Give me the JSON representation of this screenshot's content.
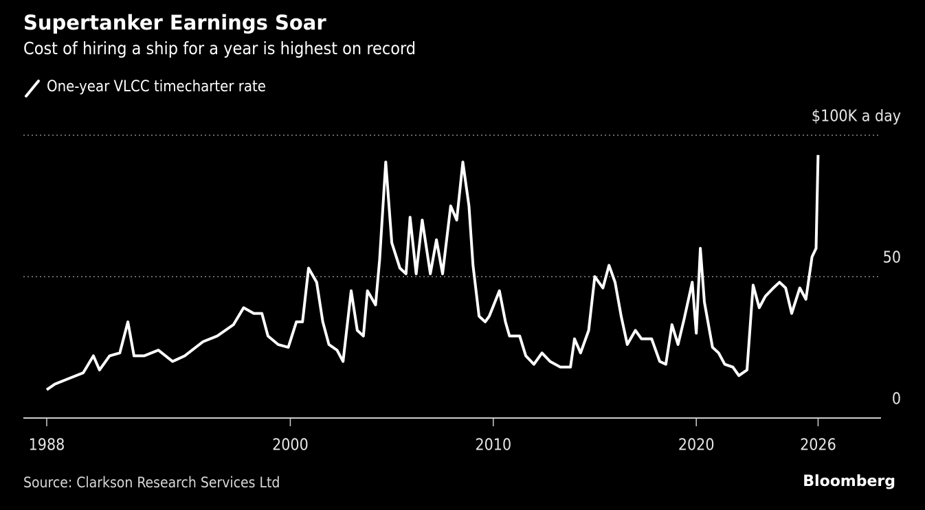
{
  "chart_data": {
    "type": "line",
    "title": "Supertanker Earnings Soar",
    "subtitle": "Cost of hiring a ship for a year is highest on record",
    "source": "Source: Clarkson Research Services Ltd",
    "brand": "Bloomberg",
    "xlim": [
      1986.85,
      2029.1
    ],
    "xticks": [
      1988,
      2000,
      2010,
      2020,
      2026
    ],
    "ylim": [
      0,
      100
    ],
    "yticks": [
      0,
      50,
      {
        "value": 100,
        "label": "$100K a day"
      }
    ],
    "grid": true,
    "x": [
      1988.0,
      1988.4,
      1989.1,
      1989.8,
      1990.3,
      1990.6,
      1991.1,
      1991.6,
      1992.0,
      1992.3,
      1992.8,
      1993.5,
      1994.2,
      1994.8,
      1995.7,
      1996.4,
      1997.2,
      1997.7,
      1998.2,
      1998.6,
      1998.9,
      1999.4,
      1999.9,
      2000.3,
      2000.6,
      2000.9,
      2001.3,
      2001.6,
      2001.9,
      2002.3,
      2002.6,
      2003.0,
      2003.3,
      2003.6,
      2003.8,
      2004.2,
      2004.4,
      2004.7,
      2005.0,
      2005.4,
      2005.7,
      2005.9,
      2006.2,
      2006.5,
      2006.9,
      2007.2,
      2007.5,
      2007.9,
      2008.2,
      2008.5,
      2008.8,
      2009.0,
      2009.3,
      2009.6,
      2009.8,
      2010.3,
      2010.6,
      2010.8,
      2011.3,
      2011.6,
      2012.0,
      2012.4,
      2012.8,
      2013.3,
      2013.8,
      2014.0,
      2014.3,
      2014.7,
      2015.0,
      2015.4,
      2015.7,
      2016.0,
      2016.3,
      2016.6,
      2017.0,
      2017.3,
      2017.8,
      2018.2,
      2018.5,
      2018.8,
      2019.1,
      2019.4,
      2019.8,
      2020.0,
      2020.2,
      2020.4,
      2020.8,
      2021.1,
      2021.4,
      2021.8,
      2022.1,
      2022.5,
      2022.8,
      2023.1,
      2023.4,
      2023.8,
      2024.1,
      2024.4,
      2024.7,
      2025.1,
      2025.4,
      2025.7,
      2025.9,
      2026.0
    ],
    "series": [
      {
        "name": "One-year VLCC timecharter rate",
        "color": "#ffffff",
        "values": [
          10,
          12,
          14,
          16,
          22,
          17,
          22,
          23,
          34,
          22,
          22,
          24,
          20,
          22,
          27,
          29,
          33,
          39,
          37,
          37,
          29,
          26,
          25,
          34,
          34,
          53,
          48,
          34,
          26,
          24,
          20,
          45,
          31,
          29,
          45,
          40,
          56,
          90.5,
          62,
          53,
          51,
          71,
          51,
          70,
          51,
          63,
          51,
          75,
          70,
          90.5,
          75,
          54,
          36,
          34,
          36,
          45,
          34,
          29,
          29,
          22,
          19,
          23,
          20,
          18,
          18,
          28,
          23,
          31,
          50,
          46,
          54,
          48,
          36,
          26,
          31,
          28,
          28,
          20,
          19,
          33,
          26,
          35,
          48,
          30,
          60,
          41,
          25,
          23,
          19,
          18,
          15,
          17,
          47,
          39,
          43,
          46,
          48,
          46,
          37,
          46,
          42,
          57,
          60,
          93
        ]
      }
    ]
  }
}
